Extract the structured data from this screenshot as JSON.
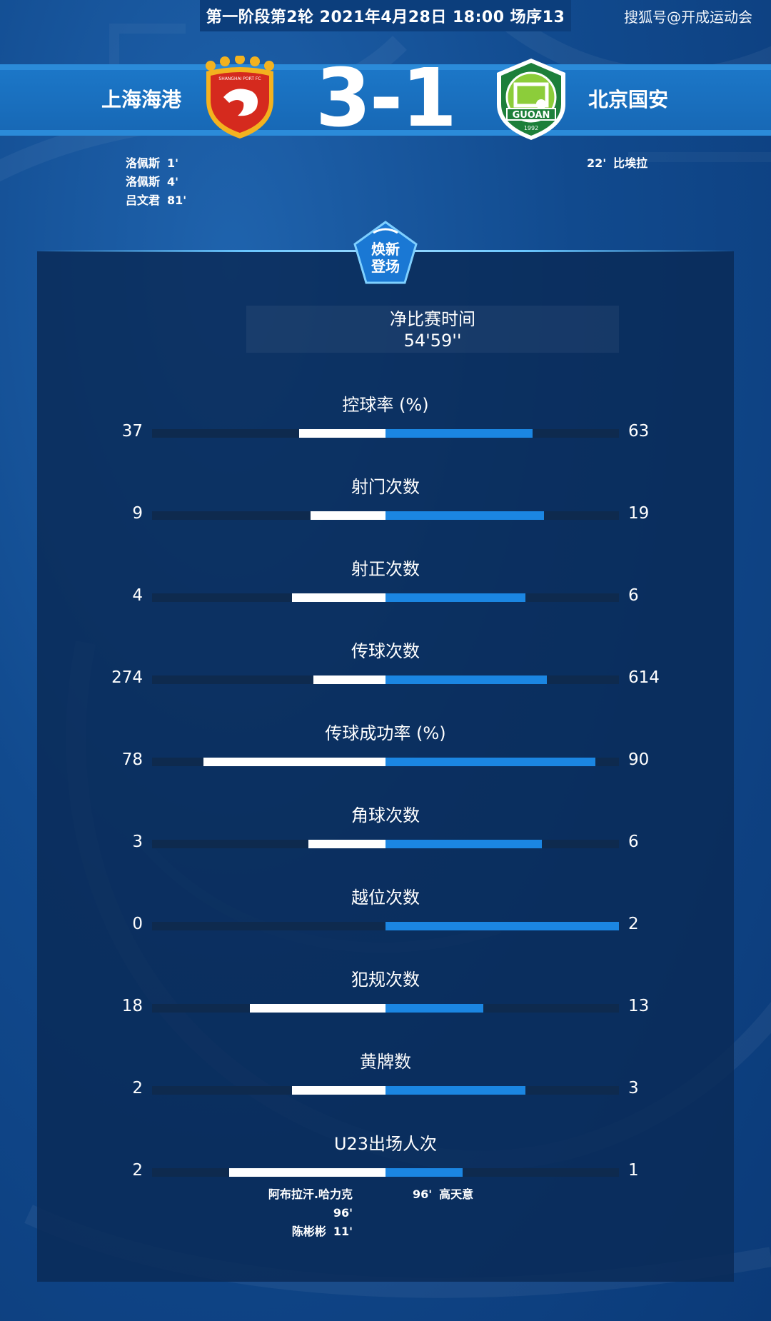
{
  "header": {
    "match_info": "第一阶段第2轮  2021年4月28日 18:00 场序13",
    "watermark": "搜狐号@开成运动会"
  },
  "match": {
    "home_team": "上海海港",
    "away_team": "北京国安",
    "score": "3-1",
    "home_crest_text": "SHANGHAI PORT FC",
    "away_crest_text": "GUOAN",
    "away_crest_year": "1992"
  },
  "scorers": {
    "home": [
      {
        "name": "洛佩斯",
        "minute": "1'"
      },
      {
        "name": "洛佩斯",
        "minute": "4'"
      },
      {
        "name": "吕文君",
        "minute": "81'"
      }
    ],
    "away": [
      {
        "name": "比埃拉",
        "minute": "22'"
      }
    ]
  },
  "badge": {
    "line1": "焕新",
    "line2": "登场"
  },
  "duration": {
    "label": "净比赛时间",
    "value": "54'59''"
  },
  "stats": [
    {
      "label": "控球率 (%)",
      "home": "37",
      "away": "63",
      "home_share": 0.37,
      "away_share": 0.63
    },
    {
      "label": "射门次数",
      "home": "9",
      "away": "19",
      "home_share": 0.32,
      "away_share": 0.68
    },
    {
      "label": "射正次数",
      "home": "4",
      "away": "6",
      "home_share": 0.4,
      "away_share": 0.6
    },
    {
      "label": "传球次数",
      "home": "274",
      "away": "614",
      "home_share": 0.31,
      "away_share": 0.69
    },
    {
      "label": "传球成功率 (%)",
      "home": "78",
      "away": "90",
      "home_share": 0.78,
      "away_share": 0.9
    },
    {
      "label": "角球次数",
      "home": "3",
      "away": "6",
      "home_share": 0.33,
      "away_share": 0.67
    },
    {
      "label": "越位次数",
      "home": "0",
      "away": "2",
      "home_share": 0.0,
      "away_share": 1.0
    },
    {
      "label": "犯规次数",
      "home": "18",
      "away": "13",
      "home_share": 0.58,
      "away_share": 0.42
    },
    {
      "label": "黄牌数",
      "home": "2",
      "away": "3",
      "home_share": 0.4,
      "away_share": 0.6
    },
    {
      "label": "U23出场人次",
      "home": "2",
      "away": "1",
      "home_share": 0.67,
      "away_share": 0.33
    }
  ],
  "u23_players": {
    "home": [
      {
        "name": "阿布拉汗.哈力克",
        "minute": "96'"
      },
      {
        "name": "陈彬彬",
        "minute": "11'"
      }
    ],
    "away": [
      {
        "name": "高天意",
        "minute": "96'"
      }
    ]
  },
  "colors": {
    "home_bar": "#ffffff",
    "away_bar": "#1b86e2",
    "track": "#0e2a4e",
    "background": "#114a8e"
  }
}
